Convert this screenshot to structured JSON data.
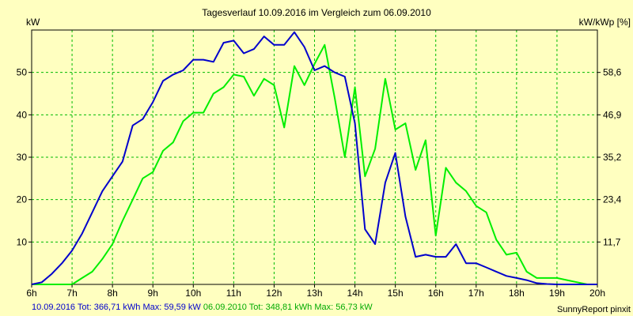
{
  "chart_data": {
    "type": "line",
    "title": "Tagesverlauf 10.09.2016 im Vergleich zum 06.09.2010",
    "ylabel_left": "kW",
    "ylabel_right": "kW/kWp [%]",
    "x_ticks": [
      "6h",
      "7h",
      "8h",
      "9h",
      "10h",
      "11h",
      "12h",
      "13h",
      "14h",
      "15h",
      "16h",
      "17h",
      "18h",
      "19h",
      "20h"
    ],
    "y_left_ticks": [
      "10",
      "20",
      "30",
      "40",
      "50"
    ],
    "y_right_ticks": [
      "11,7",
      "23,4",
      "35,2",
      "46,9",
      "58,6"
    ],
    "xlim": [
      6,
      20
    ],
    "ylim": [
      0,
      60
    ],
    "grid": true,
    "series": [
      {
        "name": "10.09.2016",
        "color": "#0000cc",
        "x": [
          6,
          6.25,
          6.5,
          6.75,
          7,
          7.25,
          7.5,
          7.75,
          8,
          8.25,
          8.5,
          8.75,
          9,
          9.25,
          9.5,
          9.75,
          10,
          10.25,
          10.5,
          10.75,
          11,
          11.25,
          11.5,
          11.75,
          12,
          12.25,
          12.5,
          12.75,
          13,
          13.25,
          13.5,
          13.75,
          14,
          14.25,
          14.5,
          14.75,
          15,
          15.25,
          15.5,
          15.75,
          16,
          16.25,
          16.5,
          16.75,
          17,
          17.25,
          17.5,
          17.75,
          18,
          18.25,
          18.5,
          18.75,
          19,
          19.25,
          19.5,
          19.75,
          20
        ],
        "y": [
          0,
          0.5,
          2.5,
          5,
          8,
          12,
          17,
          22,
          25.5,
          29,
          37.5,
          39,
          43,
          48,
          49.5,
          50.5,
          53,
          53,
          52.5,
          57,
          57.5,
          54.5,
          55.5,
          58.5,
          56.5,
          56.5,
          59.5,
          56,
          50.5,
          51.5,
          50,
          49,
          38,
          13,
          9.5,
          24,
          31,
          16,
          6.5,
          7,
          6.5,
          6.5,
          9.5,
          5,
          5,
          4,
          3,
          2,
          1.5,
          1,
          0.3,
          0.1,
          0,
          0,
          0,
          0,
          0
        ]
      },
      {
        "name": "06.09.2010",
        "color": "#00ee00",
        "x": [
          6,
          6.25,
          6.5,
          6.75,
          7,
          7.25,
          7.5,
          7.75,
          8,
          8.25,
          8.5,
          8.75,
          9,
          9.25,
          9.5,
          9.75,
          10,
          10.25,
          10.5,
          10.75,
          11,
          11.25,
          11.5,
          11.75,
          12,
          12.25,
          12.5,
          12.75,
          13,
          13.25,
          13.5,
          13.75,
          14,
          14.25,
          14.5,
          14.75,
          15,
          15.25,
          15.5,
          15.75,
          16,
          16.25,
          16.5,
          16.75,
          17,
          17.25,
          17.5,
          17.75,
          18,
          18.25,
          18.5,
          18.75,
          19,
          19.25,
          19.5,
          19.75,
          20
        ],
        "y": [
          0,
          0,
          0,
          0,
          0,
          1.5,
          3,
          6,
          9.5,
          15,
          20,
          25,
          26.5,
          31.5,
          33.5,
          38.5,
          40.5,
          40.5,
          45,
          46.5,
          49.5,
          49,
          44.5,
          48.5,
          47,
          37,
          51.5,
          47,
          52,
          56.5,
          44,
          30,
          46.5,
          25.5,
          32,
          48.5,
          36.5,
          38,
          27,
          34,
          11.5,
          27.5,
          24,
          22,
          18.5,
          17,
          10.5,
          7,
          7.5,
          3,
          1.5,
          1.5,
          1.5,
          1,
          0.5,
          0,
          0
        ]
      }
    ],
    "legend": [
      {
        "text": "10.09.2016 Tot: 366,71 kWh Max: 59,59 kW",
        "color": "#0000cc"
      },
      {
        "text": "06.09.2010 Tot: 348,81 kWh Max: 56,73 kW",
        "color": "#00ee00"
      }
    ],
    "credit": "SunnyReport pinxit"
  }
}
